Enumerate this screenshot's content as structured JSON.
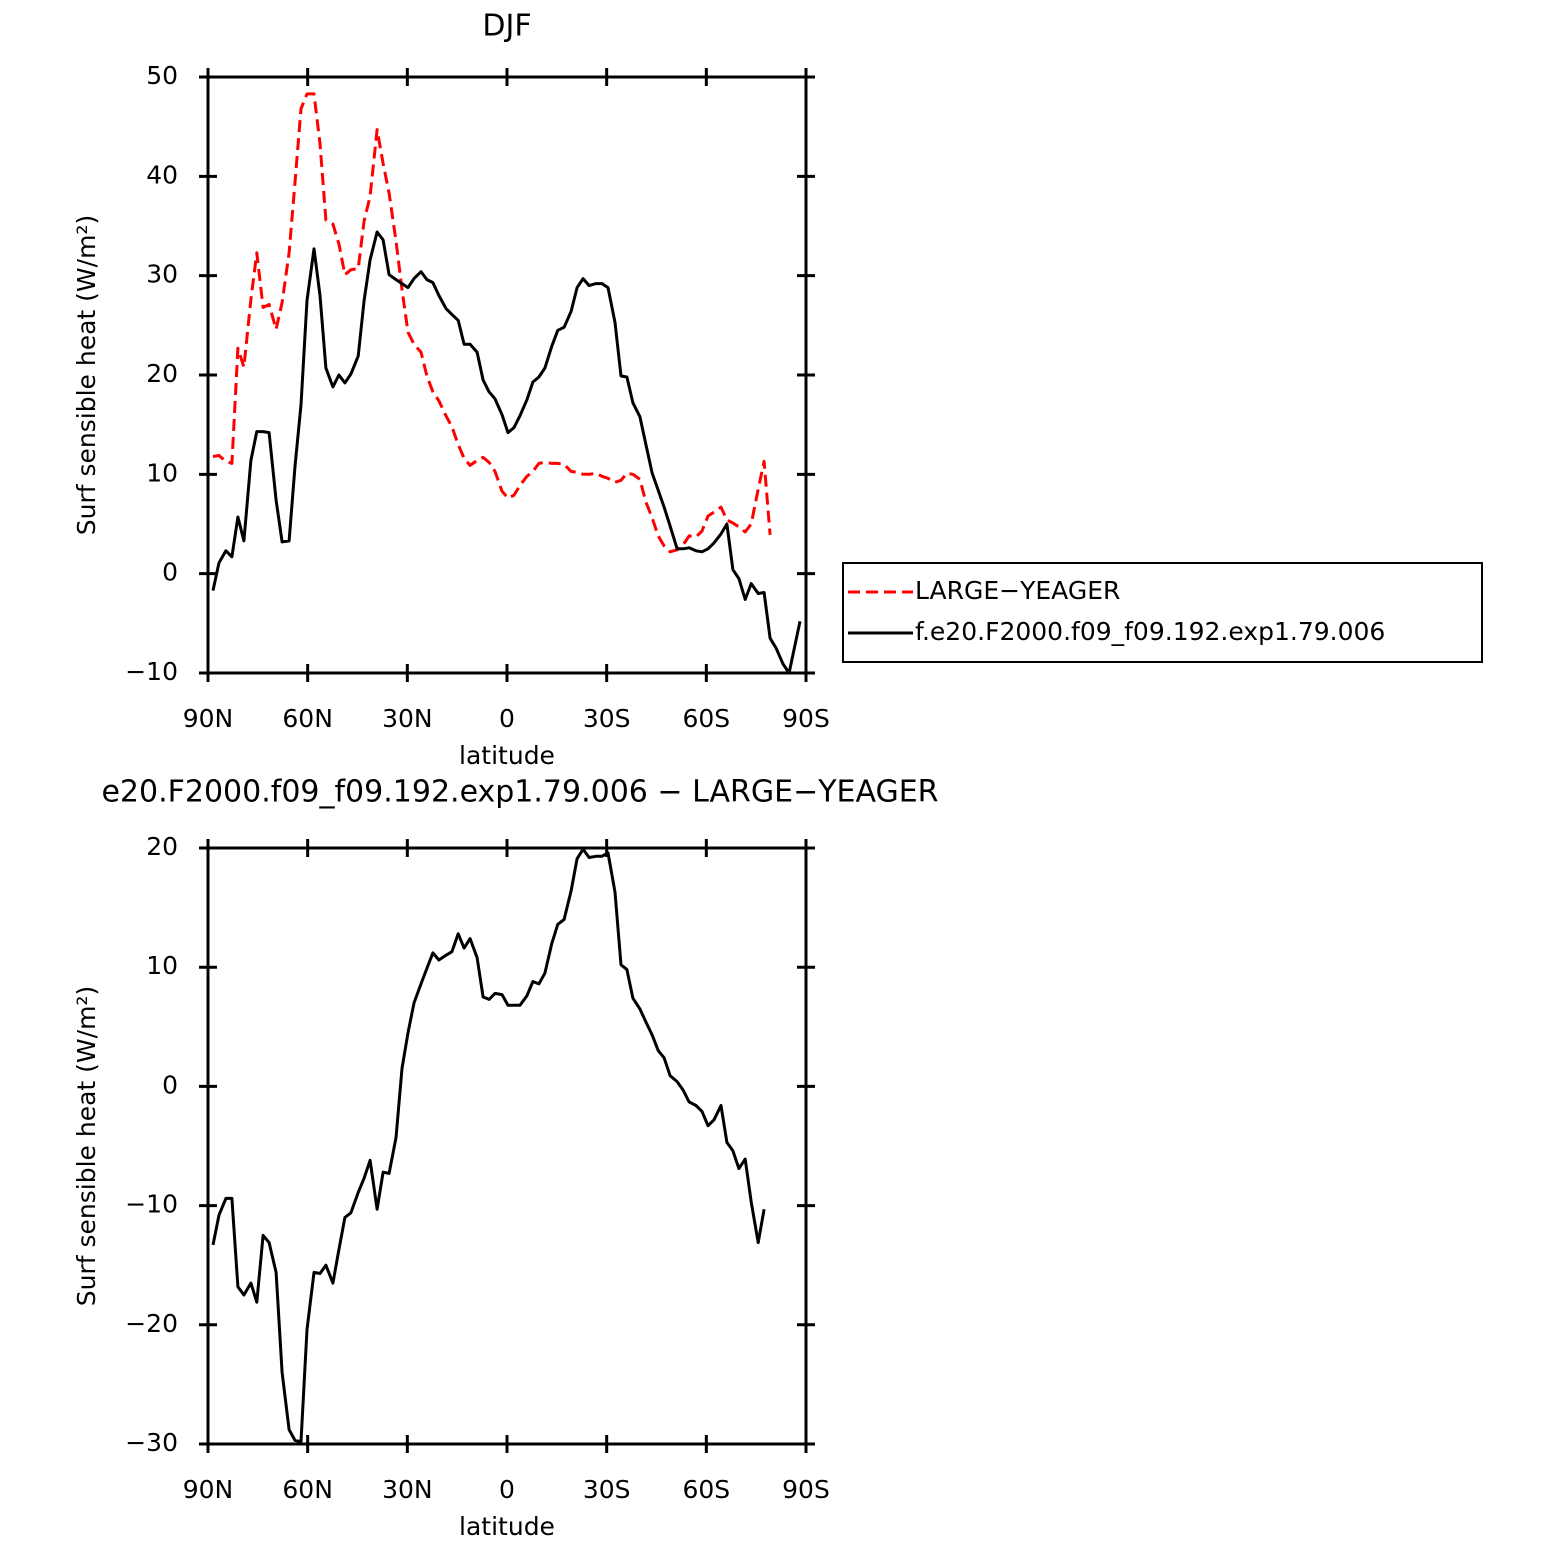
{
  "chart_data": [
    {
      "type": "line",
      "title": "DJF",
      "xlabel": "latitude",
      "ylabel": "Surf sensible heat (W/m²)",
      "x": [
        88.5,
        86.7,
        84.6,
        82.8,
        81.0,
        79.2,
        77.1,
        75.3,
        73.4,
        71.6,
        69.5,
        67.7,
        65.6,
        63.8,
        62.0,
        60.2,
        58.1,
        56.3,
        54.5,
        52.4,
        50.6,
        48.8,
        47.0,
        44.8,
        43.0,
        41.2,
        39.1,
        37.3,
        35.5,
        33.4,
        31.6,
        29.8,
        28.0,
        25.9,
        24.1,
        22.3,
        20.5,
        18.4,
        16.6,
        14.7,
        12.9,
        11.1,
        9.0,
        7.2,
        5.4,
        3.6,
        1.5,
        -0.3,
        -2.1,
        -3.9,
        -6.0,
        -7.8,
        -9.6,
        -11.4,
        -13.5,
        -15.3,
        -17.2,
        -19.3,
        -21.1,
        -22.9,
        -24.7,
        -26.8,
        -28.6,
        -30.4,
        -32.5,
        -34.3,
        -36.1,
        -37.9,
        -40.0,
        -41.8,
        -43.7,
        -45.5,
        -47.3,
        -49.1,
        -51.2,
        -53.0,
        -54.8,
        -56.9,
        -58.7,
        -60.5,
        -62.3,
        -64.4,
        -66.2,
        -68.0,
        -69.8,
        -71.7,
        -73.5,
        -75.6,
        -77.4,
        -79.2,
        -81.0,
        -83.1,
        -84.9,
        -88.2
      ],
      "series": [
        {
          "name": "LARGE−YEAGER",
          "color": "#ff0000",
          "style": "dashed",
          "values": [
            11.8,
            11.9,
            11.3,
            11.1,
            22.7,
            20.8,
            27.6,
            32.3,
            26.8,
            27.1,
            24.6,
            27.3,
            32.3,
            39.4,
            46.8,
            48.3,
            48.3,
            43.3,
            35.6,
            35.2,
            33.2,
            30.1,
            30.6,
            30.7,
            35.5,
            38,
            44.7,
            41.3,
            38.3,
            33.5,
            28.6,
            24.3,
            23.1,
            22.3,
            19.9,
            18.3,
            17.4,
            15.9,
            14.8,
            13,
            11.6,
            10.9,
            11.4,
            11.7,
            11.2,
            10.3,
            8.3,
            7.6,
            7.9,
            8.9,
            9.8,
            10.3,
            11.1,
            11.2,
            11.1,
            11.1,
            11,
            10.3,
            10.2,
            10,
            10,
            10.1,
            9.8,
            9.6,
            9.2,
            9.4,
            10.1,
            10,
            9.5,
            7.2,
            5.6,
            3.8,
            2.8,
            2.2,
            2.4,
            2.9,
            3.8,
            3.7,
            4.3,
            5.8,
            6.2,
            6.7,
            5.4,
            5.1,
            4.7,
            4.2,
            5,
            8.5,
            11.3,
            3.9,
            null,
            null,
            null,
            null
          ]
        },
        {
          "name": "f.e20.F2000.f09_f09.192.exp1.79.006",
          "color": "#000000",
          "style": "solid",
          "values": [
            -1.7,
            1.1,
            2.3,
            1.7,
            5.7,
            3.3,
            11.4,
            14.3,
            14.3,
            14.2,
            7.4,
            3.2,
            3.3,
            10.8,
            17,
            27.5,
            32.7,
            28,
            20.7,
            18.8,
            20,
            19.2,
            20.1,
            21.9,
            27.5,
            31.6,
            34.4,
            33.6,
            30.1,
            29.6,
            29.2,
            28.8,
            29.7,
            30.4,
            29.6,
            29.3,
            28,
            26.7,
            26.1,
            25.5,
            23.1,
            23.1,
            22.3,
            19.5,
            18.3,
            17.6,
            16,
            14.2,
            14.7,
            15.9,
            17.5,
            19.3,
            19.8,
            20.7,
            22.9,
            24.5,
            24.8,
            26.4,
            28.8,
            29.7,
            29,
            29.2,
            29.2,
            28.8,
            25.3,
            19.9,
            19.8,
            17.2,
            15.8,
            13,
            10.1,
            8.4,
            6.7,
            4.8,
            2.5,
            2.5,
            2.6,
            2.3,
            2.2,
            2.5,
            3.1,
            4,
            5,
            0.4,
            -0.5,
            -2.6,
            -1,
            -2,
            -1.9,
            -6.5,
            -7.5,
            -9.1,
            -10,
            -4.8
          ]
        }
      ],
      "xlim": [
        90,
        -90
      ],
      "xticks": [
        {
          "value": 90,
          "label": "90N"
        },
        {
          "value": 60,
          "label": "60N"
        },
        {
          "value": 30,
          "label": "30N"
        },
        0,
        {
          "value": -30,
          "label": "30S"
        },
        {
          "value": -60,
          "label": "60S"
        },
        {
          "value": -90,
          "label": "90S"
        }
      ],
      "ylim": [
        -10,
        50
      ],
      "yticks": [
        {
          "value": -10,
          "label": "−10"
        },
        0,
        10,
        20,
        30,
        40,
        50
      ],
      "legend": "outside-right"
    },
    {
      "type": "line",
      "title": "e20.F2000.f09_f09.192.exp1.79.006 − LARGE−YEAGER",
      "xlabel": "latitude",
      "ylabel": "Surf sensible heat (W/m²)",
      "x": [
        88.5,
        86.7,
        84.6,
        82.8,
        81.0,
        79.2,
        77.1,
        75.3,
        73.4,
        71.6,
        69.5,
        67.7,
        65.6,
        63.8,
        62.0,
        60.2,
        58.1,
        56.3,
        54.5,
        52.4,
        50.6,
        48.8,
        47.0,
        44.8,
        43.0,
        41.2,
        39.1,
        37.3,
        35.5,
        33.4,
        31.6,
        29.8,
        28.0,
        25.9,
        24.1,
        22.3,
        20.5,
        18.4,
        16.6,
        14.7,
        12.9,
        11.1,
        9.0,
        7.2,
        5.4,
        3.6,
        1.5,
        -0.3,
        -2.1,
        -3.9,
        -6.0,
        -7.8,
        -9.6,
        -11.4,
        -13.5,
        -15.3,
        -17.2,
        -19.3,
        -21.1,
        -22.9,
        -24.7,
        -26.8,
        -28.6,
        -30.4,
        -32.5,
        -34.3,
        -36.1,
        -37.9,
        -40.0,
        -41.8,
        -43.7,
        -45.5,
        -47.3,
        -49.1,
        -51.2,
        -53.0,
        -54.8,
        -56.9,
        -58.7,
        -60.5,
        -62.3,
        -64.4,
        -66.2,
        -68.0,
        -69.8,
        -71.7,
        -73.5,
        -75.6,
        -77.4
      ],
      "series": [
        {
          "color": "#000000",
          "style": "solid",
          "values": [
            -13.3,
            -10.8,
            -9.4,
            -9.4,
            -16.8,
            -17.5,
            -16.5,
            -18.1,
            -12.5,
            -13.1,
            -15.6,
            -24,
            -28.8,
            -29.7,
            -29.8,
            -20.4,
            -15.6,
            -15.7,
            -15,
            -16.5,
            -13.7,
            -11,
            -10.6,
            -8.9,
            -7.7,
            -6.2,
            -10.3,
            -7.2,
            -7.3,
            -4.3,
            1.5,
            4.5,
            7,
            8.6,
            9.9,
            11.2,
            10.6,
            11,
            11.3,
            12.8,
            11.6,
            12.4,
            10.8,
            7.5,
            7.3,
            7.8,
            7.7,
            6.8,
            6.8,
            6.8,
            7.6,
            8.8,
            8.6,
            9.5,
            12,
            13.6,
            14,
            16.4,
            19.1,
            19.9,
            19.2,
            19.3,
            19.3,
            19.6,
            16.3,
            10.2,
            9.8,
            7.4,
            6.5,
            5.4,
            4.3,
            3,
            2.4,
            0.9,
            0.4,
            -0.3,
            -1.3,
            -1.6,
            -2.1,
            -3.3,
            -2.8,
            -1.6,
            -4.7,
            -5.4,
            -6.9,
            -6.1,
            -9.7,
            -13.1,
            -10.3
          ]
        }
      ],
      "xlim": [
        90,
        -90
      ],
      "xticks": [
        {
          "value": 90,
          "label": "90N"
        },
        {
          "value": 60,
          "label": "60N"
        },
        {
          "value": 30,
          "label": "30N"
        },
        0,
        {
          "value": -30,
          "label": "30S"
        },
        {
          "value": -60,
          "label": "60S"
        },
        {
          "value": -90,
          "label": "90S"
        }
      ],
      "ylim": [
        -30,
        20
      ],
      "yticks": [
        {
          "value": -30,
          "label": "−30"
        },
        {
          "value": -20,
          "label": "−20"
        },
        {
          "value": -10,
          "label": "−10"
        },
        0,
        10,
        20
      ]
    }
  ]
}
